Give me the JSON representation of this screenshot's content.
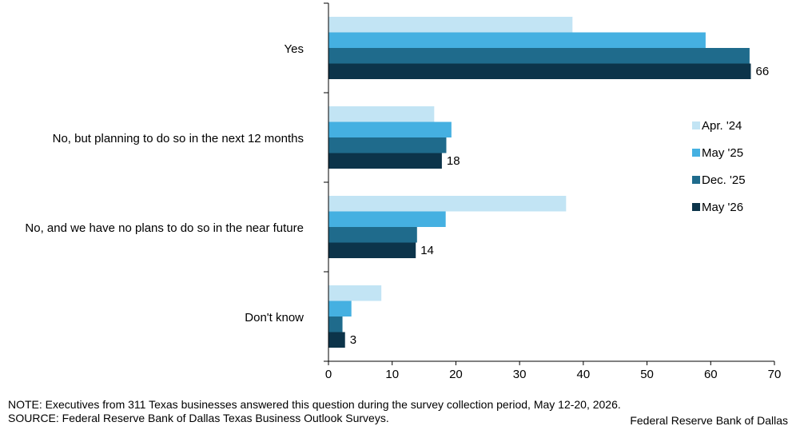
{
  "chart_data": {
    "type": "bar",
    "orientation": "horizontal",
    "categories": [
      "Yes",
      "No, but planning to do so in the next 12 months",
      "No, and we have no plans to do so in the near future",
      "Don't know"
    ],
    "series": [
      {
        "name": "Apr. '24",
        "color": "#c2e4f4",
        "values": [
          38.3,
          16.6,
          37.3,
          8.3
        ]
      },
      {
        "name": "May '25",
        "color": "#45b0e1",
        "values": [
          59.2,
          19.3,
          18.4,
          3.6
        ]
      },
      {
        "name": "Dec. '25",
        "color": "#1f6b8c",
        "values": [
          66.1,
          18.5,
          13.9,
          2.2
        ]
      },
      {
        "name": "May '26",
        "color": "#0c344a",
        "values": [
          66.3,
          17.8,
          13.7,
          2.6
        ]
      }
    ],
    "data_labels": [
      "66",
      "18",
      "14",
      "3"
    ],
    "xlim": [
      0,
      70
    ],
    "xticks": [
      "0",
      "10",
      "20",
      "30",
      "40",
      "50",
      "60",
      "70"
    ],
    "grid": false,
    "legend_position": "right"
  },
  "footer": {
    "note": "NOTE: Executives from 311 Texas businesses answered this question during the survey collection period, May 12-20, 2026.",
    "source": "SOURCE: Federal Reserve Bank of Dallas Texas Business Outlook Surveys.",
    "credit": "Federal Reserve Bank of Dallas"
  }
}
